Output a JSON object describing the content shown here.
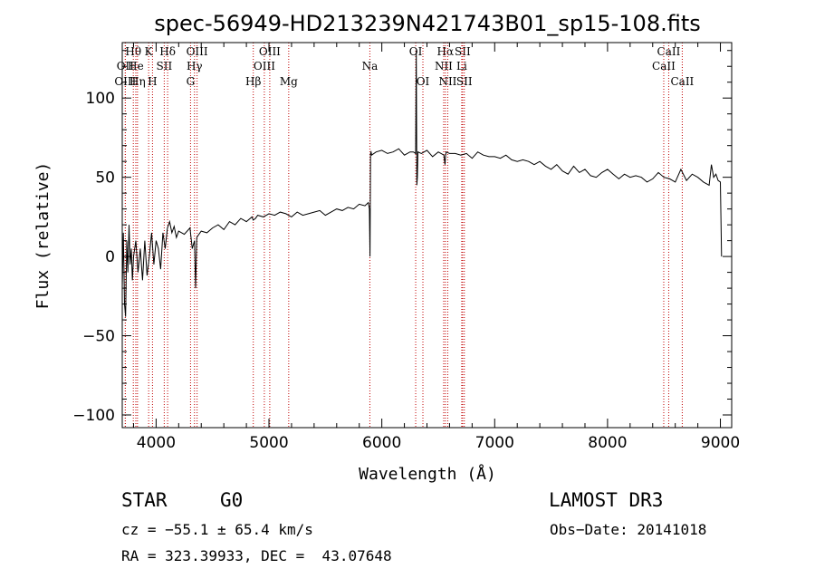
{
  "chart_data": {
    "type": "line",
    "title": "spec-56949-HD213239N421743B01_sp15-108.fits",
    "xlabel": "Wavelength (Å)",
    "ylabel": "Flux (relative)",
    "xlim": [
      3700,
      9100
    ],
    "ylim": [
      -108,
      135
    ],
    "xticks": [
      4000,
      5000,
      6000,
      7000,
      8000,
      9000
    ],
    "yticks": [
      -100,
      -50,
      0,
      50,
      100
    ],
    "ytick_labels": [
      "−100",
      "−50",
      "0",
      "50",
      "100"
    ],
    "grid": false,
    "series": [
      {
        "x": [
          3700,
          3710,
          3720,
          3730,
          3740,
          3750,
          3760,
          3770,
          3780,
          3790,
          3800,
          3820,
          3840,
          3860,
          3880,
          3900,
          3920,
          3940,
          3960,
          3980,
          4000,
          4020,
          4040,
          4060,
          4080,
          4100,
          4120,
          4140,
          4160,
          4180,
          4200,
          4250,
          4300,
          4320,
          4340,
          4350,
          4360,
          4380,
          4400,
          4450,
          4500,
          4550,
          4600,
          4650,
          4700,
          4750,
          4800,
          4850,
          4860,
          4880,
          4900,
          4950,
          5000,
          5050,
          5100,
          5150,
          5200,
          5250,
          5300,
          5350,
          5400,
          5450,
          5500,
          5550,
          5600,
          5650,
          5700,
          5750,
          5800,
          5850,
          5880,
          5890,
          5895,
          5900,
          5905,
          5910,
          5950,
          6000,
          6050,
          6100,
          6150,
          6200,
          6250,
          6280,
          6300,
          6305,
          6310,
          6315,
          6320,
          6350,
          6400,
          6450,
          6500,
          6550,
          6560,
          6565,
          6570,
          6600,
          6650,
          6700,
          6750,
          6800,
          6850,
          6900,
          6950,
          7000,
          7050,
          7100,
          7150,
          7200,
          7250,
          7300,
          7350,
          7400,
          7450,
          7500,
          7550,
          7600,
          7650,
          7700,
          7750,
          7800,
          7850,
          7900,
          7950,
          8000,
          8050,
          8100,
          8150,
          8200,
          8250,
          8300,
          8350,
          8400,
          8450,
          8500,
          8550,
          8600,
          8650,
          8700,
          8750,
          8800,
          8850,
          8900,
          8920,
          8940,
          8960,
          8980,
          9000,
          9010
        ],
        "y": [
          -20,
          15,
          -30,
          -38,
          10,
          -10,
          20,
          -5,
          5,
          -15,
          0,
          10,
          -10,
          5,
          -15,
          10,
          -12,
          0,
          15,
          -5,
          10,
          5,
          -8,
          15,
          5,
          18,
          22,
          15,
          19,
          12,
          16,
          14,
          18,
          5,
          10,
          -20,
          12,
          14,
          16,
          15,
          18,
          20,
          17,
          22,
          20,
          24,
          22,
          25,
          23,
          24,
          26,
          25,
          27,
          26,
          28,
          27,
          25,
          28,
          26,
          27,
          28,
          29,
          26,
          28,
          30,
          29,
          31,
          30,
          33,
          32,
          34,
          30,
          0,
          65,
          66,
          64,
          66,
          67,
          65,
          66,
          68,
          64,
          66,
          66,
          65,
          130,
          45,
          50,
          66,
          65,
          67,
          63,
          66,
          64,
          58,
          64,
          66,
          65,
          65,
          64,
          65,
          62,
          66,
          64,
          63,
          63,
          62,
          64,
          61,
          60,
          61,
          60,
          58,
          60,
          57,
          55,
          58,
          54,
          52,
          57,
          53,
          55,
          51,
          50,
          53,
          55,
          52,
          49,
          52,
          50,
          51,
          50,
          47,
          49,
          53,
          50,
          49,
          47,
          55,
          48,
          52,
          50,
          47,
          45,
          58,
          50,
          52,
          48,
          47,
          0
        ]
      }
    ],
    "line_markers": [
      {
        "label": "Hθ",
        "x": 3798,
        "row": 1
      },
      {
        "label": "OII",
        "x": 3727,
        "row": 2
      },
      {
        "label": "He",
        "x": 3820,
        "row": 2
      },
      {
        "label": "OIII",
        "x": 3727,
        "row": 3
      },
      {
        "label": "Hη",
        "x": 3835,
        "row": 3
      },
      {
        "label": "K",
        "x": 3934,
        "row": 1
      },
      {
        "label": "H",
        "x": 3968,
        "row": 3
      },
      {
        "label": "SII",
        "x": 4072,
        "row": 2
      },
      {
        "label": "Hδ",
        "x": 4102,
        "row": 1
      },
      {
        "label": "OIII",
        "x": 4363,
        "row": 1
      },
      {
        "label": "Hγ",
        "x": 4340,
        "row": 2
      },
      {
        "label": "G",
        "x": 4305,
        "row": 3
      },
      {
        "label": "Hβ",
        "x": 4861,
        "row": 3
      },
      {
        "label": "OIII",
        "x": 5007,
        "row": 1
      },
      {
        "label": "OIII",
        "x": 4959,
        "row": 2
      },
      {
        "label": "Mg",
        "x": 5175,
        "row": 3
      },
      {
        "label": "Na",
        "x": 5894,
        "row": 2
      },
      {
        "label": "OI",
        "x": 6300,
        "row": 1
      },
      {
        "label": "OI",
        "x": 6364,
        "row": 3
      },
      {
        "label": "Hα",
        "x": 6563,
        "row": 1
      },
      {
        "label": "NII",
        "x": 6548,
        "row": 2
      },
      {
        "label": "NII",
        "x": 6584,
        "row": 3
      },
      {
        "label": "SII",
        "x": 6716,
        "row": 1
      },
      {
        "label": "Li",
        "x": 6708,
        "row": 2
      },
      {
        "label": "SII",
        "x": 6731,
        "row": 3
      },
      {
        "label": "CaII",
        "x": 8542,
        "row": 1
      },
      {
        "label": "CaII",
        "x": 8498,
        "row": 2
      },
      {
        "label": "CaII",
        "x": 8662,
        "row": 3
      }
    ]
  },
  "info": {
    "class_label": "STAR",
    "subclass": "G0",
    "survey": "LAMOST DR3",
    "redshift": "cz = −55.1 ± 65.4 km/s",
    "obs_date": "Obs−Date: 20141018",
    "coords": "RA = 323.39933, DEC =  43.07648"
  }
}
